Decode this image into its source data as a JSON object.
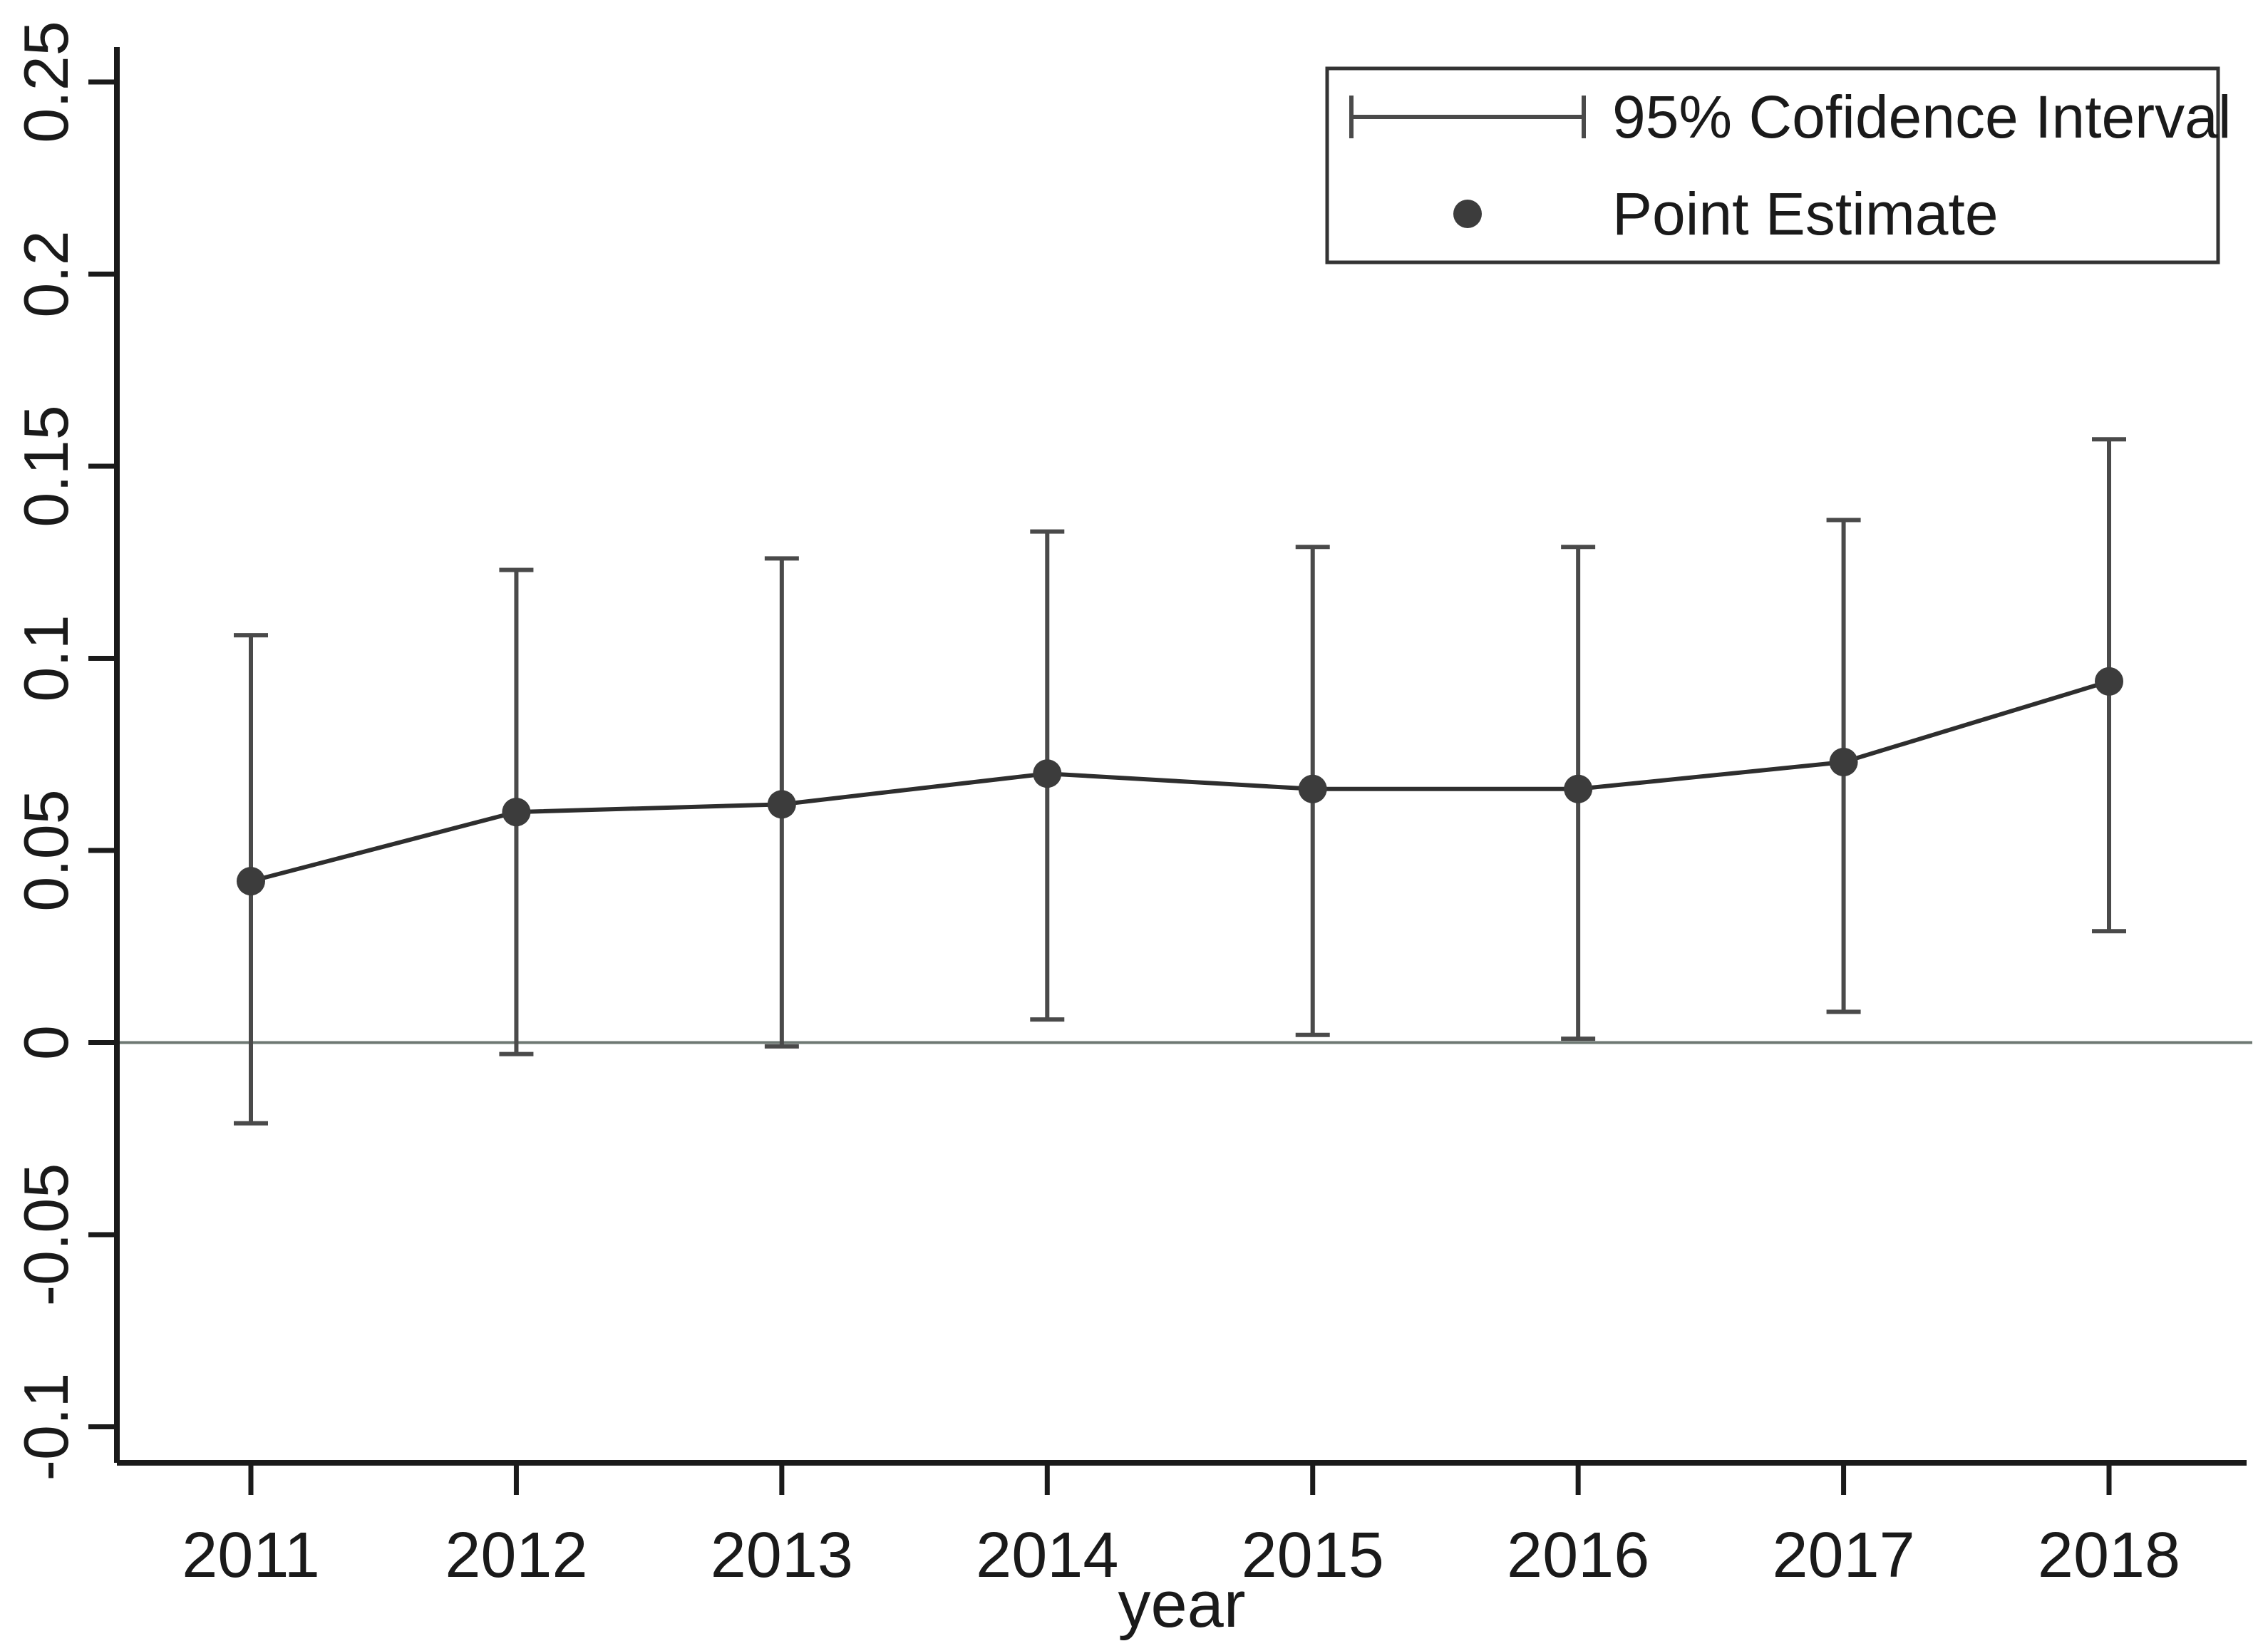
{
  "colors": {
    "point": "#3c3c3c",
    "errorbar": "#4a4a4a",
    "series_line": "#2e2e2e",
    "axis": "#1a1a1a",
    "zero_line": "#6e7873",
    "legend_border": "#333333",
    "text": "#1a1a1a",
    "background": "#ffffff"
  },
  "chart_data": {
    "type": "line",
    "title": "",
    "xlabel": "year",
    "ylabel": "",
    "categories": [
      "2011",
      "2012",
      "2013",
      "2014",
      "2015",
      "2016",
      "2017",
      "2018"
    ],
    "x": [
      2011,
      2012,
      2013,
      2014,
      2015,
      2016,
      2017,
      2018
    ],
    "series": [
      {
        "name": "Point Estimate",
        "values": [
          0.042,
          0.06,
          0.062,
          0.07,
          0.066,
          0.066,
          0.073,
          0.094
        ]
      }
    ],
    "ci_level": "95%",
    "ci_lower": [
      -0.021,
      -0.003,
      -0.001,
      0.006,
      0.002,
      0.001,
      0.008,
      0.029
    ],
    "ci_upper": [
      0.106,
      0.123,
      0.126,
      0.133,
      0.129,
      0.129,
      0.136,
      0.157
    ],
    "yticks": [
      0.25,
      0.2,
      0.15,
      0.1,
      0.05,
      0,
      -0.05,
      -0.1
    ],
    "ytick_labels": [
      "0.25",
      "0.2",
      "0.15",
      "0.1",
      "0.05",
      "0",
      "-0.05",
      "-0.1"
    ],
    "ylim": [
      -0.11,
      0.26
    ],
    "grid": false,
    "zero_reference_line": true,
    "legend": {
      "position": "top-right",
      "items": [
        {
          "swatch": "errorbar",
          "label": "95% Cofidence Interval"
        },
        {
          "swatch": "dot",
          "label": "Point Estimate"
        }
      ]
    }
  }
}
